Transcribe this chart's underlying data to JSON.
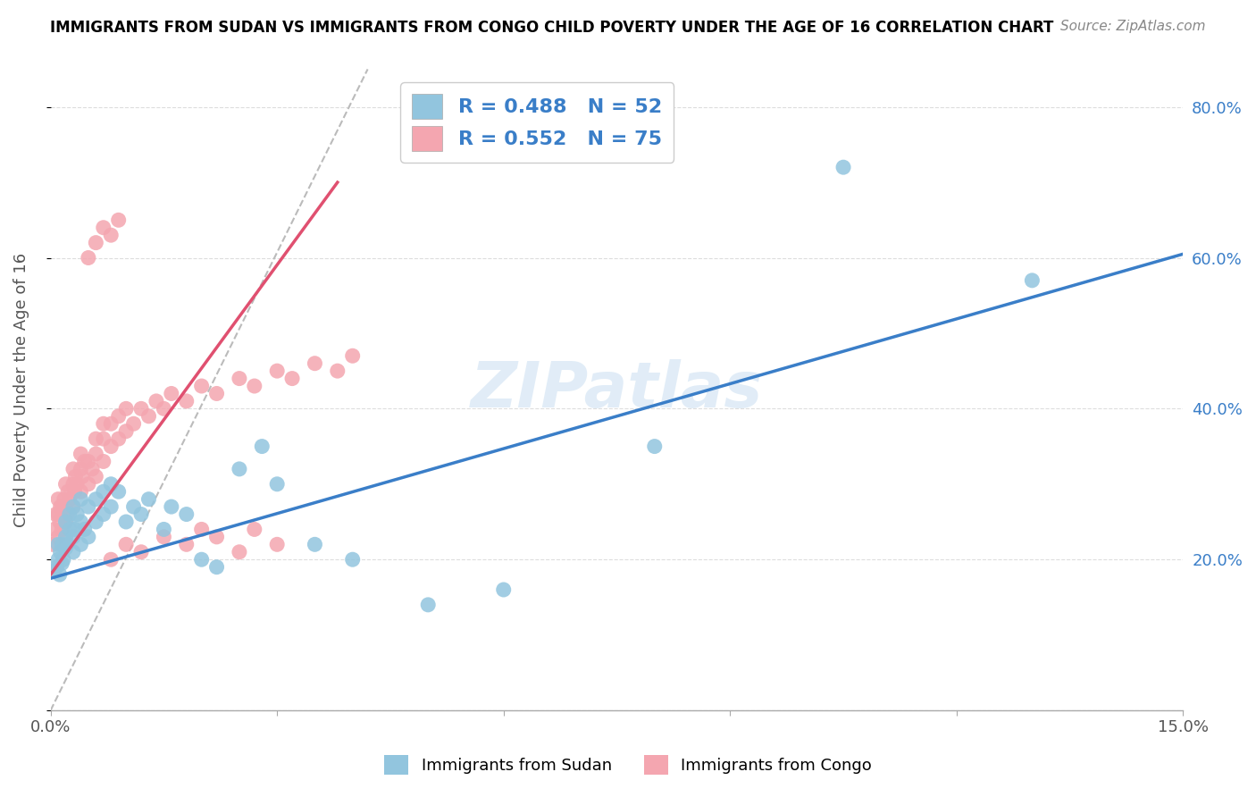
{
  "title": "IMMIGRANTS FROM SUDAN VS IMMIGRANTS FROM CONGO CHILD POVERTY UNDER THE AGE OF 16 CORRELATION CHART",
  "source": "Source: ZipAtlas.com",
  "ylabel": "Child Poverty Under the Age of 16",
  "xlim": [
    0.0,
    0.15
  ],
  "ylim": [
    0.0,
    0.85
  ],
  "ytick_positions": [
    0.0,
    0.2,
    0.4,
    0.6,
    0.8
  ],
  "yticklabels_right": [
    "",
    "20.0%",
    "40.0%",
    "60.0%",
    "80.0%"
  ],
  "sudan_R": 0.488,
  "sudan_N": 52,
  "congo_R": 0.552,
  "congo_N": 75,
  "sudan_color": "#92C5DE",
  "congo_color": "#F4A6B0",
  "sudan_line_color": "#3A7EC8",
  "congo_line_color": "#E05070",
  "diagonal_color": "#BBBBBB",
  "watermark": "ZIPatlas",
  "sudan_x": [
    0.0005,
    0.0008,
    0.001,
    0.001,
    0.0012,
    0.0013,
    0.0015,
    0.0015,
    0.0017,
    0.002,
    0.002,
    0.002,
    0.0022,
    0.0025,
    0.0025,
    0.003,
    0.003,
    0.003,
    0.0032,
    0.0035,
    0.004,
    0.004,
    0.004,
    0.0045,
    0.005,
    0.005,
    0.006,
    0.006,
    0.007,
    0.007,
    0.008,
    0.008,
    0.009,
    0.01,
    0.011,
    0.012,
    0.013,
    0.015,
    0.016,
    0.018,
    0.02,
    0.022,
    0.025,
    0.028,
    0.03,
    0.035,
    0.04,
    0.05,
    0.06,
    0.08,
    0.105,
    0.13
  ],
  "sudan_y": [
    0.185,
    0.19,
    0.2,
    0.22,
    0.18,
    0.21,
    0.195,
    0.22,
    0.2,
    0.215,
    0.23,
    0.25,
    0.22,
    0.24,
    0.26,
    0.21,
    0.23,
    0.27,
    0.24,
    0.26,
    0.22,
    0.25,
    0.28,
    0.24,
    0.23,
    0.27,
    0.25,
    0.28,
    0.26,
    0.29,
    0.27,
    0.3,
    0.29,
    0.25,
    0.27,
    0.26,
    0.28,
    0.24,
    0.27,
    0.26,
    0.2,
    0.19,
    0.32,
    0.35,
    0.3,
    0.22,
    0.2,
    0.14,
    0.16,
    0.35,
    0.72,
    0.57
  ],
  "congo_x": [
    0.0003,
    0.0005,
    0.0007,
    0.001,
    0.001,
    0.001,
    0.0012,
    0.0013,
    0.0015,
    0.0015,
    0.0017,
    0.0018,
    0.002,
    0.002,
    0.002,
    0.0022,
    0.0023,
    0.0025,
    0.003,
    0.003,
    0.003,
    0.0032,
    0.0033,
    0.0035,
    0.004,
    0.004,
    0.004,
    0.0042,
    0.0045,
    0.005,
    0.005,
    0.0055,
    0.006,
    0.006,
    0.006,
    0.007,
    0.007,
    0.007,
    0.008,
    0.008,
    0.009,
    0.009,
    0.01,
    0.01,
    0.011,
    0.012,
    0.013,
    0.014,
    0.015,
    0.016,
    0.018,
    0.02,
    0.022,
    0.025,
    0.027,
    0.03,
    0.032,
    0.035,
    0.038,
    0.04,
    0.008,
    0.01,
    0.012,
    0.015,
    0.018,
    0.02,
    0.022,
    0.025,
    0.027,
    0.03,
    0.005,
    0.006,
    0.007,
    0.008,
    0.009
  ],
  "congo_y": [
    0.22,
    0.24,
    0.26,
    0.23,
    0.26,
    0.28,
    0.25,
    0.27,
    0.24,
    0.27,
    0.26,
    0.28,
    0.25,
    0.27,
    0.3,
    0.26,
    0.29,
    0.28,
    0.27,
    0.3,
    0.32,
    0.29,
    0.31,
    0.3,
    0.29,
    0.32,
    0.34,
    0.31,
    0.33,
    0.3,
    0.33,
    0.32,
    0.31,
    0.34,
    0.36,
    0.33,
    0.36,
    0.38,
    0.35,
    0.38,
    0.36,
    0.39,
    0.37,
    0.4,
    0.38,
    0.4,
    0.39,
    0.41,
    0.4,
    0.42,
    0.41,
    0.43,
    0.42,
    0.44,
    0.43,
    0.45,
    0.44,
    0.46,
    0.45,
    0.47,
    0.2,
    0.22,
    0.21,
    0.23,
    0.22,
    0.24,
    0.23,
    0.21,
    0.24,
    0.22,
    0.6,
    0.62,
    0.64,
    0.63,
    0.65
  ],
  "sudan_line_x": [
    0.0,
    0.15
  ],
  "sudan_line_y": [
    0.175,
    0.605
  ],
  "congo_line_x": [
    0.0,
    0.038
  ],
  "congo_line_y": [
    0.18,
    0.7
  ],
  "diag_line_x": [
    0.0,
    0.042
  ],
  "diag_line_y": [
    0.0,
    0.85
  ]
}
